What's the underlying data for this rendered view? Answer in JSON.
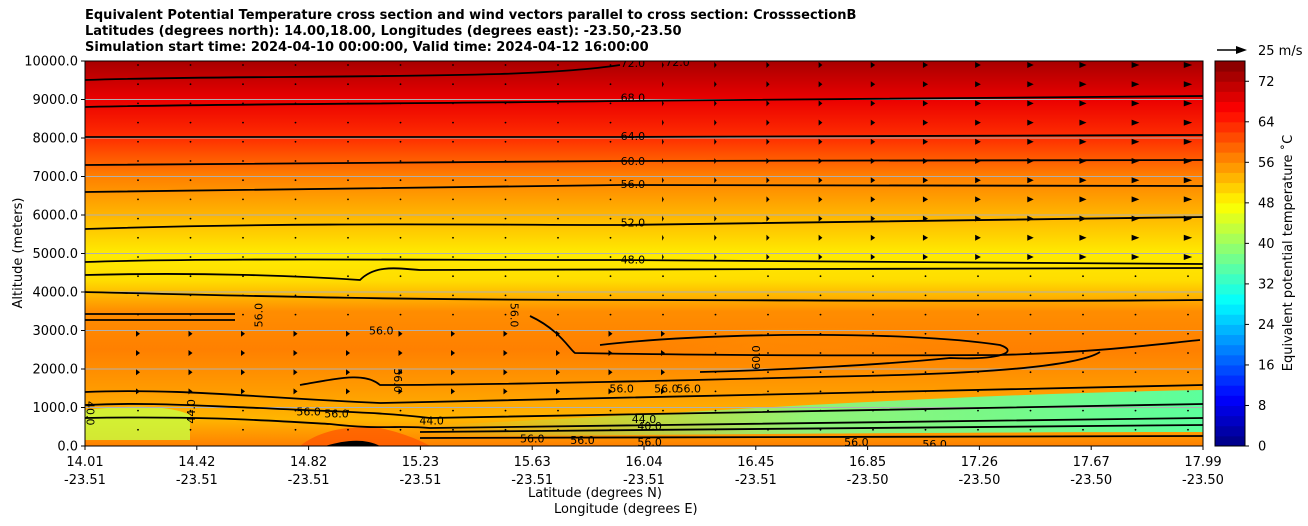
{
  "chart_data": {
    "type": "contourf",
    "title_lines": [
      "Equivalent Potential Temperature cross section and wind vectors parallel to cross section: CrosssectionB",
      "Latitudes (degrees north): 14.00,18.00, Longitudes (degrees east): -23.50,-23.50",
      "Simulation start time: 2024-04-10 00:00:00, Valid time: 2024-04-12 16:00:00"
    ],
    "ylabel": "Altitude (meters)",
    "xlabel_line1": "Latitude (degrees N)",
    "xlabel_line2": "Longitude (degrees E)",
    "ylim": [
      0,
      10000
    ],
    "yticks": [
      {
        "value": 0,
        "label": "0.0"
      },
      {
        "value": 1000,
        "label": "1000.0"
      },
      {
        "value": 2000,
        "label": "2000.0"
      },
      {
        "value": 3000,
        "label": "3000.0"
      },
      {
        "value": 4000,
        "label": "4000.0"
      },
      {
        "value": 5000,
        "label": "5000.0"
      },
      {
        "value": 6000,
        "label": "6000.0"
      },
      {
        "value": 7000,
        "label": "7000.0"
      },
      {
        "value": 8000,
        "label": "8000.0"
      },
      {
        "value": 9000,
        "label": "9000.0"
      },
      {
        "value": 10000,
        "label": "10000.0"
      }
    ],
    "xticks": [
      {
        "lat": "14.01",
        "lon": "-23.51"
      },
      {
        "lat": "14.42",
        "lon": "-23.51"
      },
      {
        "lat": "14.82",
        "lon": "-23.51"
      },
      {
        "lat": "15.23",
        "lon": "-23.51"
      },
      {
        "lat": "15.63",
        "lon": "-23.51"
      },
      {
        "lat": "16.04",
        "lon": "-23.51"
      },
      {
        "lat": "16.45",
        "lon": "-23.51"
      },
      {
        "lat": "16.85",
        "lon": "-23.50"
      },
      {
        "lat": "17.26",
        "lon": "-23.50"
      },
      {
        "lat": "17.67",
        "lon": "-23.50"
      },
      {
        "lat": "17.99",
        "lon": "-23.50"
      }
    ],
    "colorbar": {
      "label": "Equivalent potential temperature ˚C",
      "min": 0,
      "max": 76,
      "step": 2,
      "ticks": [
        "0",
        "8",
        "16",
        "24",
        "32",
        "40",
        "48",
        "56",
        "64",
        "72"
      ]
    },
    "quiver_key": "25 m/s",
    "theta_e_profile": [
      {
        "z": 0,
        "v": 57
      },
      {
        "z": 700,
        "v": 53
      },
      {
        "z": 1500,
        "v": 55
      },
      {
        "z": 2500,
        "v": 57
      },
      {
        "z": 3500,
        "v": 56
      },
      {
        "z": 4300,
        "v": 50
      },
      {
        "z": 5000,
        "v": 49
      },
      {
        "z": 6000,
        "v": 53
      },
      {
        "z": 7000,
        "v": 57
      },
      {
        "z": 8000,
        "v": 63
      },
      {
        "z": 9000,
        "v": 68
      },
      {
        "z": 10000,
        "v": 73
      }
    ],
    "contour_labels": [
      {
        "text": "72.0",
        "x": 0.49,
        "z": 9950
      },
      {
        "text": "72.0",
        "x": 0.53,
        "z": 9980
      },
      {
        "text": "68.0",
        "x": 0.49,
        "z": 9050
      },
      {
        "text": "64.0",
        "x": 0.49,
        "z": 8050
      },
      {
        "text": "60.0",
        "x": 0.49,
        "z": 7400
      },
      {
        "text": "56.0",
        "x": 0.49,
        "z": 6800
      },
      {
        "text": "52.0",
        "x": 0.49,
        "z": 5800
      },
      {
        "text": "48.0",
        "x": 0.49,
        "z": 4850
      },
      {
        "text": "56.0",
        "x": 0.265,
        "z": 3000
      },
      {
        "text": "56.0",
        "x": 0.155,
        "z": 3400,
        "rot": -90
      },
      {
        "text": "56.0",
        "x": 0.384,
        "z": 3400,
        "rot": 90
      },
      {
        "text": "56.0",
        "x": 0.28,
        "z": 1700,
        "rot": 90
      },
      {
        "text": "60.0",
        "x": 0.6,
        "z": 2300,
        "rot": -90
      },
      {
        "text": "56.0",
        "x": 0.48,
        "z": 1500
      },
      {
        "text": "56.0",
        "x": 0.52,
        "z": 1500
      },
      {
        "text": "56.0",
        "x": 0.54,
        "z": 1500
      },
      {
        "text": "56.0",
        "x": 0.225,
        "z": 850
      },
      {
        "text": "56.0",
        "x": 0.2,
        "z": 900
      },
      {
        "text": "44.0",
        "x": 0.5,
        "z": 700
      },
      {
        "text": "40.0",
        "x": 0.505,
        "z": 520
      },
      {
        "text": "44.0",
        "x": 0.31,
        "z": 660
      },
      {
        "text": "44.0",
        "x": 0.095,
        "z": 900,
        "rot": -90
      },
      {
        "text": "40.0",
        "x": 0.005,
        "z": 850,
        "rot": 90
      },
      {
        "text": "56.0",
        "x": 0.4,
        "z": 200
      },
      {
        "text": "56.0",
        "x": 0.445,
        "z": 150
      },
      {
        "text": "56.0",
        "x": 0.505,
        "z": 100
      },
      {
        "text": "56.0",
        "x": 0.69,
        "z": 100
      },
      {
        "text": "56.0",
        "x": 0.76,
        "z": 50
      }
    ]
  }
}
